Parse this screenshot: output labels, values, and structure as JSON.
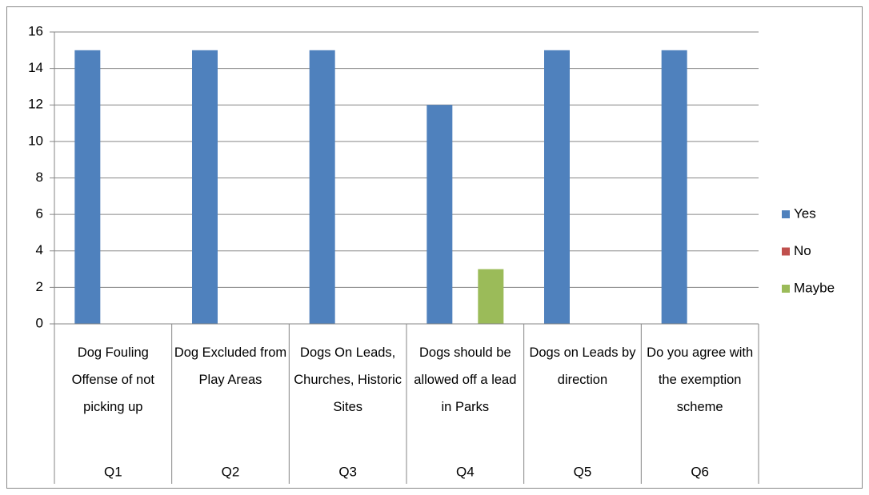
{
  "chart_data": {
    "type": "bar",
    "categories": [
      "Q1",
      "Q2",
      "Q3",
      "Q4",
      "Q5",
      "Q6"
    ],
    "category_descriptions": [
      "Dog Fouling Offense of not picking up",
      "Dog Excluded from Play Areas",
      "Dogs On Leads, Churches, Historic Sites",
      "Dogs should be allowed off a lead in Parks",
      "Dogs on Leads by direction",
      "Do you agree with the exemption scheme"
    ],
    "series": [
      {
        "name": "Yes",
        "color": "#4f81bd",
        "values": [
          15,
          15,
          15,
          12,
          15,
          15
        ]
      },
      {
        "name": "No",
        "color": "#c0504d",
        "values": [
          0,
          0,
          0,
          0,
          0,
          0
        ]
      },
      {
        "name": "Maybe",
        "color": "#9bbb59",
        "values": [
          0,
          0,
          0,
          3,
          0,
          0
        ]
      }
    ],
    "ylim": [
      0,
      16
    ],
    "yticks": [
      0,
      2,
      4,
      6,
      8,
      10,
      12,
      14,
      16
    ],
    "grid": true,
    "legend": "right"
  }
}
